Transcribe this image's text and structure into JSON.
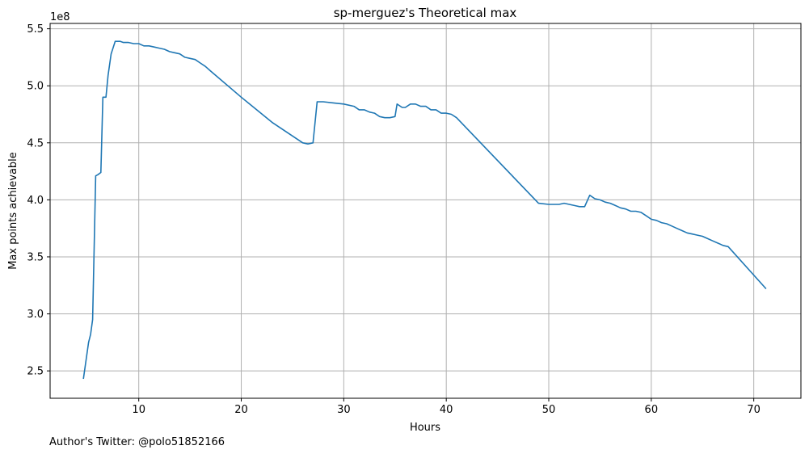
{
  "chart_data": {
    "type": "line",
    "title": "sp-merguez's Theoretical max",
    "xlabel": "Hours",
    "ylabel": "Max points achievable",
    "y_offset_label": "1e8",
    "xlim": [
      1.35,
      74.6
    ],
    "ylim": [
      226000000,
      554700000
    ],
    "xticks": [
      10,
      20,
      30,
      40,
      50,
      60,
      70
    ],
    "xtick_labels": [
      "10",
      "20",
      "30",
      "40",
      "50",
      "60",
      "70"
    ],
    "yticks": [
      250000000,
      300000000,
      350000000,
      400000000,
      450000000,
      500000000,
      550000000
    ],
    "ytick_labels": [
      "2.5",
      "3.0",
      "3.5",
      "4.0",
      "4.5",
      "5.0",
      "5.5"
    ],
    "grid": true,
    "line_color": "#1f77b4",
    "series": [
      {
        "x": [
          4.6,
          5.1,
          5.3,
          5.5,
          5.8,
          6.0,
          6.3,
          6.5,
          6.8,
          7.0,
          7.3,
          7.7,
          8.2,
          8.5,
          9.0,
          9.5,
          10.0,
          10.5,
          11.0,
          11.5,
          12.0,
          12.5,
          13.0,
          13.5,
          14.0,
          14.5,
          15.0,
          15.5,
          16.0,
          16.5,
          17.0,
          20.0,
          23.0,
          26.0,
          26.5,
          27.0,
          27.4,
          28.0,
          29.0,
          30.0,
          31.0,
          31.5,
          32.0,
          32.5,
          33.0,
          33.5,
          34.0,
          34.5,
          35.0,
          35.2,
          35.7,
          36.0,
          36.5,
          37.0,
          37.5,
          38.0,
          38.5,
          39.0,
          39.5,
          40.0,
          40.5,
          41.0,
          49.0,
          50.0,
          51.0,
          51.5,
          52.0,
          52.5,
          53.0,
          53.5,
          54.0,
          54.5,
          55.0,
          55.5,
          56.0,
          56.5,
          57.0,
          57.5,
          58.0,
          58.5,
          59.0,
          59.5,
          60.0,
          60.5,
          61.0,
          61.5,
          62.0,
          62.5,
          63.0,
          63.5,
          64.0,
          64.5,
          65.0,
          65.5,
          66.0,
          66.5,
          67.0,
          67.5,
          71.2
        ],
        "y": [
          243000000,
          275000000,
          282000000,
          295000000,
          421000000,
          422000000,
          424000000,
          490000000,
          490000000,
          509000000,
          528000000,
          539000000,
          539000000,
          538000000,
          538000000,
          537000000,
          537000000,
          535000000,
          535000000,
          534000000,
          533000000,
          532000000,
          530000000,
          529000000,
          528000000,
          525000000,
          524000000,
          523000000,
          520000000,
          517000000,
          513000000,
          490000000,
          468000000,
          450000000,
          449000000,
          450000000,
          486000000,
          486000000,
          485000000,
          484000000,
          482000000,
          479000000,
          479000000,
          477000000,
          476000000,
          473000000,
          472000000,
          472000000,
          473000000,
          484000000,
          481000000,
          481000000,
          484000000,
          484000000,
          482000000,
          482000000,
          479000000,
          479000000,
          476000000,
          476000000,
          475000000,
          472000000,
          397000000,
          396000000,
          396000000,
          397000000,
          396000000,
          395000000,
          394000000,
          394000000,
          404000000,
          401000000,
          400000000,
          398000000,
          397000000,
          395000000,
          393000000,
          392000000,
          390000000,
          390000000,
          389000000,
          386000000,
          383000000,
          382000000,
          380000000,
          379000000,
          377000000,
          375000000,
          373000000,
          371000000,
          370000000,
          369000000,
          368000000,
          366000000,
          364000000,
          362000000,
          360000000,
          359000000,
          322000000
        ]
      }
    ]
  },
  "footer_text": "Author's Twitter: @polo51852166"
}
